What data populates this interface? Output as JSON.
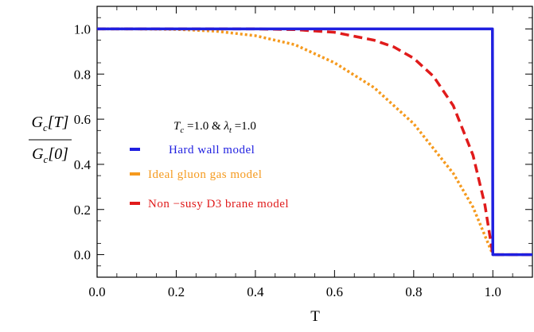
{
  "chart_data": {
    "type": "line",
    "xlabel": "T",
    "ylabel": {
      "numerator": "G_c[T]",
      "denominator": "G_c[0]"
    },
    "xlim": [
      0.0,
      1.1
    ],
    "ylim": [
      -0.1,
      1.1
    ],
    "xticks": [
      "0.0",
      "0.2",
      "0.4",
      "0.6",
      "0.8",
      "1.0"
    ],
    "yticks": [
      "0.0",
      "0.2",
      "0.4",
      "0.6",
      "0.8",
      "1.0"
    ],
    "annotation": "T_c =1.0 & λ_t =1.0",
    "legend_position": "center-left",
    "grid": false,
    "series": [
      {
        "name": "Hard wall model",
        "color": "#1f1fe0",
        "style": "solid",
        "x": [
          0.0,
          0.2,
          0.4,
          0.6,
          0.8,
          0.999,
          1.0,
          1.02,
          1.05,
          1.1
        ],
        "y": [
          1.0,
          1.0,
          1.0,
          1.0,
          1.0,
          1.0,
          0.0,
          0.0,
          0.0,
          0.0
        ]
      },
      {
        "name": "Ideal gluon gas model",
        "color": "#f59a1e",
        "style": "dotted",
        "x": [
          0.0,
          0.1,
          0.2,
          0.3,
          0.4,
          0.5,
          0.6,
          0.7,
          0.8,
          0.9,
          0.95,
          1.0,
          1.05,
          1.1
        ],
        "y": [
          1.0,
          1.0,
          0.998,
          0.99,
          0.97,
          0.93,
          0.85,
          0.74,
          0.58,
          0.36,
          0.21,
          0.0,
          0.0,
          0.0
        ]
      },
      {
        "name": "Non −susy D3 brane model",
        "color": "#e01b1b",
        "style": "dashed",
        "x": [
          0.0,
          0.2,
          0.4,
          0.5,
          0.6,
          0.7,
          0.75,
          0.8,
          0.85,
          0.9,
          0.95,
          0.98,
          1.0,
          1.05,
          1.1
        ],
        "y": [
          1.0,
          1.0,
          1.0,
          0.997,
          0.985,
          0.95,
          0.92,
          0.87,
          0.79,
          0.66,
          0.44,
          0.22,
          0.0,
          0.0,
          0.0
        ]
      }
    ]
  }
}
